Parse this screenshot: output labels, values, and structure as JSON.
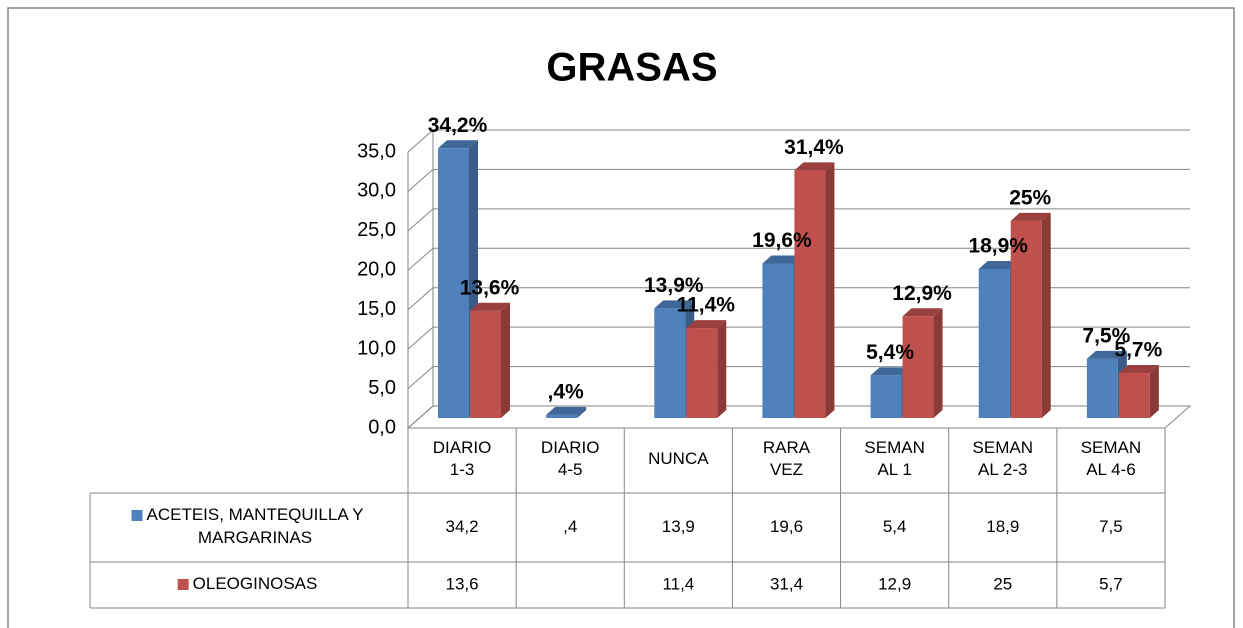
{
  "chart_data": {
    "type": "bar3d",
    "title": "GRASAS",
    "categories": [
      "DIARIO 1-3",
      "DIARIO 4-5",
      "NUNCA",
      "RARA VEZ",
      "SEMANAL 1",
      "SEMANAL 2-3",
      "SEMANAL 4-6"
    ],
    "series": [
      {
        "name": "ACETEIS, MANTEQUILLA Y MARGARINAS",
        "color": "#4f81bd",
        "values": [
          34.2,
          0.4,
          13.9,
          19.6,
          5.4,
          18.9,
          7.5
        ],
        "value_labels": [
          "34,2%",
          ",4%",
          "13,9%",
          "19,6%",
          "5,4%",
          "18,9%",
          "7,5%"
        ],
        "table_labels": [
          "34,2",
          ",4",
          "13,9",
          "19,6",
          "5,4",
          "18,9",
          "7,5"
        ]
      },
      {
        "name": "OLEOGINOSAS",
        "color": "#c0504d",
        "values": [
          13.6,
          null,
          11.4,
          31.4,
          12.9,
          25,
          5.7
        ],
        "value_labels": [
          "13,6%",
          null,
          "11,4%",
          "31,4%",
          "12,9%",
          "25%",
          "5,7%"
        ],
        "table_labels": [
          "13,6",
          null,
          "11,4",
          "31,4",
          "12,9",
          "25",
          "5,7"
        ]
      }
    ],
    "ylim": [
      0,
      35
    ],
    "yticks": [
      {
        "value": 0,
        "label": "0,0"
      },
      {
        "value": 5,
        "label": "5,0"
      },
      {
        "value": 10,
        "label": "10,0"
      },
      {
        "value": 15,
        "label": "15,0"
      },
      {
        "value": 20,
        "label": "20,0"
      },
      {
        "value": 25,
        "label": "25,0"
      },
      {
        "value": 30,
        "label": "30,0"
      },
      {
        "value": 35,
        "label": "35,0"
      }
    ],
    "grid": true,
    "data_table": true
  }
}
